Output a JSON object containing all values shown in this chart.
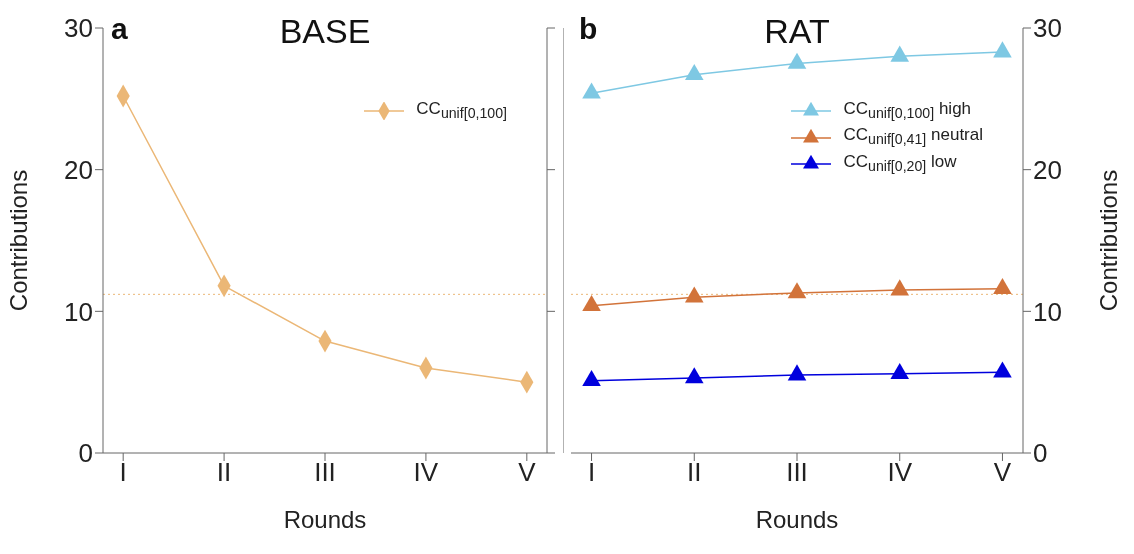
{
  "chart_data": [
    {
      "type": "line",
      "title": "BASE",
      "annotations": [
        "a"
      ],
      "xlabel": "Rounds",
      "ylabel": "Contributions",
      "categories": [
        "I",
        "II",
        "III",
        "IV",
        "V"
      ],
      "series": [
        {
          "name": "CC$_{unif[0,100]}$",
          "color": "#ebb776",
          "values": [
            25.2,
            11.8,
            7.9,
            6.0,
            5.0
          ]
        }
      ],
      "ylim": [
        0,
        30
      ],
      "yticks": [
        0,
        10,
        20,
        30
      ],
      "ref_lines": [
        {
          "axis": "y",
          "value": 11.2,
          "color": "#ebb776",
          "line_style": "dotted"
        }
      ],
      "marker": "diamond",
      "line_style": "solid",
      "legend": "top right"
    },
    {
      "type": "line",
      "title": "RAT",
      "annotations": [
        "b"
      ],
      "xlabel": "Rounds",
      "y2label": "Contributions",
      "categories": [
        "I",
        "II",
        "III",
        "IV",
        "V"
      ],
      "series": [
        {
          "name": "CC$_{unif[0,100]}$ high",
          "color": "#7ec8e3",
          "axis": "y2",
          "values": [
            25.4,
            26.7,
            27.5,
            28.0,
            28.3
          ]
        },
        {
          "name": "CC$_{unif[0,41]}$ neutral",
          "color": "#d2733a",
          "axis": "y2",
          "values": [
            10.4,
            11.0,
            11.3,
            11.5,
            11.6
          ]
        },
        {
          "name": "CC$_{unif[0,20]}$ low",
          "color": "#0000dd",
          "axis": "y2",
          "values": [
            5.1,
            5.3,
            5.5,
            5.6,
            5.7
          ]
        }
      ],
      "y2lim": [
        0,
        30
      ],
      "y2ticks": [
        0,
        10,
        20,
        30
      ],
      "ref_lines": [
        {
          "axis": "y2",
          "value": 11.2,
          "color": "#ebb776",
          "line_style": "dotted"
        }
      ],
      "marker": "triangle",
      "line_style": "solid",
      "legend": "top right"
    }
  ]
}
